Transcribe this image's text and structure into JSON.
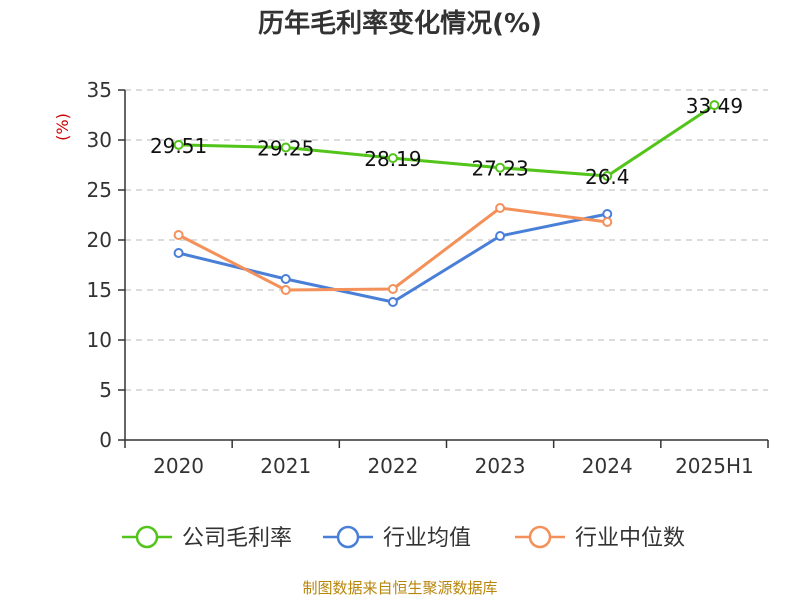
{
  "chart_data": {
    "type": "line",
    "title": "历年毛利率变化情况(%)",
    "ylabel": "(%)",
    "ylim": [
      0,
      35
    ],
    "yticks": [
      0,
      5,
      10,
      15,
      20,
      25,
      30,
      35
    ],
    "grid": true,
    "legend_position": "bottom",
    "categories": [
      "2020",
      "2021",
      "2022",
      "2023",
      "2024",
      "2025H1"
    ],
    "series": [
      {
        "name": "公司毛利率",
        "color": "#52c41a",
        "values": [
          29.51,
          29.25,
          28.19,
          27.23,
          26.4,
          33.49
        ],
        "labels": [
          "29.51",
          "29.25",
          "28.19",
          "27.23",
          "26.4",
          "33.49"
        ]
      },
      {
        "name": "行业均值",
        "color": "#4a7fd8",
        "values": [
          18.7,
          16.1,
          13.8,
          20.4,
          22.6,
          null
        ]
      },
      {
        "name": "行业中位数",
        "color": "#f4905a",
        "values": [
          20.5,
          15.0,
          15.1,
          23.2,
          21.8,
          null
        ]
      }
    ]
  },
  "source": "制图数据来自恒生聚源数据库"
}
